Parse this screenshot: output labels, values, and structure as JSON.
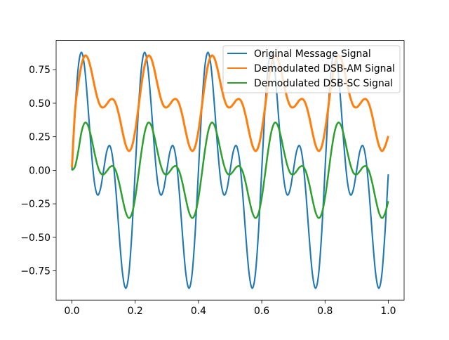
{
  "chart_data": {
    "type": "line",
    "title": "",
    "xlabel": "",
    "ylabel": "",
    "xlim": [
      -0.05,
      1.05
    ],
    "ylim": [
      -0.968,
      0.968
    ],
    "grid": false,
    "legend_placement": "upper-right",
    "x_ticks": [
      "0.0",
      "0.2",
      "0.4",
      "0.6",
      "0.8",
      "1.0"
    ],
    "x_tick_values": [
      0,
      0.2,
      0.4,
      0.6,
      0.8,
      1.0
    ],
    "y_ticks": [
      "−0.75",
      "−0.50",
      "−0.25",
      "0.00",
      "0.25",
      "0.50",
      "0.75"
    ],
    "y_tick_values": [
      -0.75,
      -0.5,
      -0.25,
      0,
      0.25,
      0.5,
      0.75
    ],
    "x_start": 0,
    "x_step": 0.01,
    "series": [
      {
        "name": "Original Message Signal",
        "color": "#1f77b4",
        "values": [
          0,
          0.449,
          0.769,
          0.88,
          0.769,
          0.5,
          0.181,
          -0.071,
          -0.182,
          -0.14,
          0,
          0.14,
          0.182,
          0.071,
          -0.181,
          -0.5,
          -0.769,
          -0.88,
          -0.769,
          -0.449,
          0,
          0.449,
          0.769,
          0.88,
          0.769,
          0.5,
          0.181,
          -0.071,
          -0.182,
          -0.14,
          0,
          0.14,
          0.182,
          0.071,
          -0.181,
          -0.5,
          -0.769,
          -0.88,
          -0.769,
          -0.449,
          0,
          0.449,
          0.769,
          0.88,
          0.769,
          0.5,
          0.181,
          -0.071,
          -0.182,
          -0.14,
          0,
          0.14,
          0.182,
          0.071,
          -0.181,
          -0.5,
          -0.769,
          -0.88,
          -0.769,
          -0.449,
          0,
          0.449,
          0.769,
          0.88,
          0.769,
          0.5,
          0.181,
          -0.071,
          -0.182,
          -0.14,
          0,
          0.14,
          0.182,
          0.071,
          -0.181,
          -0.5,
          -0.769,
          -0.88,
          -0.769,
          -0.449,
          0,
          0.449,
          0.769,
          0.88,
          0.769,
          0.5,
          0.181,
          -0.071,
          -0.182,
          -0.14,
          0,
          0.14,
          0.182,
          0.071,
          -0.181,
          -0.5,
          -0.769,
          -0.88,
          -0.769,
          -0.449,
          -0.03
        ]
      },
      {
        "name": "Demodulated DSB-AM Signal",
        "color": "#ff7f0e",
        "values": [
          0.02,
          0.45,
          0.642,
          0.783,
          0.852,
          0.838,
          0.757,
          0.645,
          0.543,
          0.48,
          0.469,
          0.493,
          0.524,
          0.53,
          0.488,
          0.399,
          0.286,
          0.188,
          0.144,
          0.18,
          0.295,
          0.463,
          0.642,
          0.783,
          0.852,
          0.838,
          0.757,
          0.645,
          0.543,
          0.48,
          0.469,
          0.493,
          0.524,
          0.53,
          0.488,
          0.399,
          0.286,
          0.188,
          0.144,
          0.18,
          0.295,
          0.463,
          0.642,
          0.783,
          0.852,
          0.838,
          0.757,
          0.645,
          0.543,
          0.48,
          0.469,
          0.493,
          0.524,
          0.53,
          0.488,
          0.399,
          0.286,
          0.188,
          0.144,
          0.18,
          0.295,
          0.463,
          0.642,
          0.783,
          0.852,
          0.838,
          0.757,
          0.645,
          0.543,
          0.48,
          0.469,
          0.493,
          0.524,
          0.53,
          0.488,
          0.399,
          0.286,
          0.188,
          0.144,
          0.18,
          0.295,
          0.463,
          0.642,
          0.783,
          0.852,
          0.838,
          0.757,
          0.645,
          0.543,
          0.48,
          0.469,
          0.493,
          0.524,
          0.53,
          0.488,
          0.399,
          0.286,
          0.188,
          0.144,
          0.18,
          0.255
        ]
      },
      {
        "name": "Demodulated DSB-SC Signal",
        "color": "#2ca02c",
        "values": [
          0,
          0.03,
          0.142,
          0.283,
          0.352,
          0.338,
          0.257,
          0.145,
          0.043,
          -0.02,
          -0.031,
          -0.007,
          0.024,
          0.03,
          -0.012,
          -0.101,
          -0.214,
          -0.312,
          -0.356,
          -0.32,
          -0.205,
          -0.037,
          0.142,
          0.283,
          0.352,
          0.338,
          0.257,
          0.145,
          0.043,
          -0.02,
          -0.031,
          -0.007,
          0.024,
          0.03,
          -0.012,
          -0.101,
          -0.214,
          -0.312,
          -0.356,
          -0.32,
          -0.205,
          -0.037,
          0.142,
          0.283,
          0.352,
          0.338,
          0.257,
          0.145,
          0.043,
          -0.02,
          -0.031,
          -0.007,
          0.024,
          0.03,
          -0.012,
          -0.101,
          -0.214,
          -0.312,
          -0.356,
          -0.32,
          -0.205,
          -0.037,
          0.142,
          0.283,
          0.352,
          0.338,
          0.257,
          0.145,
          0.043,
          -0.02,
          -0.031,
          -0.007,
          0.024,
          0.03,
          -0.012,
          -0.101,
          -0.214,
          -0.312,
          -0.356,
          -0.32,
          -0.205,
          -0.037,
          0.142,
          0.283,
          0.352,
          0.338,
          0.257,
          0.145,
          0.043,
          -0.02,
          -0.031,
          -0.007,
          0.024,
          0.03,
          -0.012,
          -0.101,
          -0.214,
          -0.312,
          -0.356,
          -0.32,
          -0.23
        ]
      }
    ]
  }
}
